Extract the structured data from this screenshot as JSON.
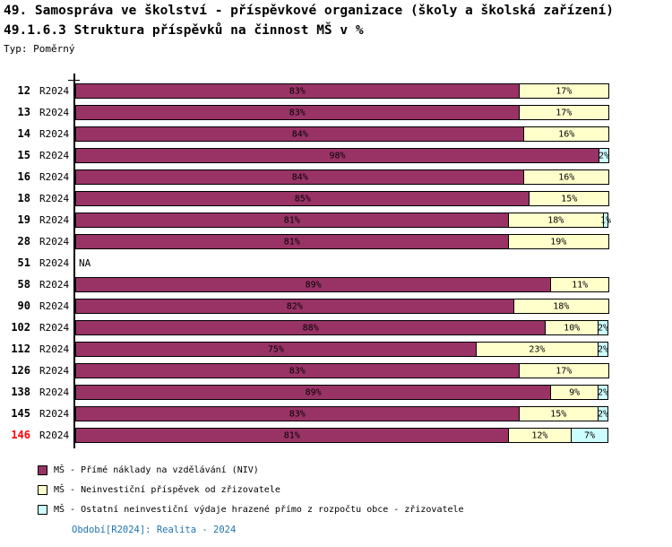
{
  "header": {
    "title_line1": "49. Samospráva ve školství - příspěvkové organizace (školy a školská zařízení)",
    "title_line2": "49.1.6.3 Struktura příspěvků na činnost MŠ v %",
    "type_label": "Typ: Poměrný"
  },
  "chart_data": {
    "type": "bar",
    "orientation": "horizontal",
    "stacked": true,
    "unit": "%",
    "xlim": [
      0,
      100
    ],
    "grid": false,
    "legend_position": "bottom",
    "na_label": "NA",
    "highlight_color": "#ff0000",
    "series": [
      {
        "name": "MŠ - Přímé náklady na vzdělávání (NIV)",
        "color": "#993366"
      },
      {
        "name": "MŠ - Neinvestiční příspěvek od zřizovatele",
        "color": "#FFFFCC"
      },
      {
        "name": "MŠ - Ostatní neinvestiční výdaje hrazené přímo z rozpočtu obce - zřizovatele",
        "color": "#CCFFFF"
      }
    ],
    "rows": [
      {
        "id": "12",
        "period": "R2024",
        "values": [
          83,
          17,
          0
        ]
      },
      {
        "id": "13",
        "period": "R2024",
        "values": [
          83,
          17,
          0
        ]
      },
      {
        "id": "14",
        "period": "R2024",
        "values": [
          84,
          16,
          0
        ]
      },
      {
        "id": "15",
        "period": "R2024",
        "values": [
          98,
          0,
          2
        ]
      },
      {
        "id": "16",
        "period": "R2024",
        "values": [
          84,
          16,
          0
        ]
      },
      {
        "id": "18",
        "period": "R2024",
        "values": [
          85,
          15,
          0
        ]
      },
      {
        "id": "19",
        "period": "R2024",
        "values": [
          81,
          18,
          1
        ]
      },
      {
        "id": "28",
        "period": "R2024",
        "values": [
          81,
          19,
          0
        ]
      },
      {
        "id": "51",
        "period": "R2024",
        "values": null,
        "na": true
      },
      {
        "id": "58",
        "period": "R2024",
        "values": [
          89,
          11,
          0
        ]
      },
      {
        "id": "90",
        "period": "R2024",
        "values": [
          82,
          18,
          0
        ]
      },
      {
        "id": "102",
        "period": "R2024",
        "values": [
          88,
          10,
          2
        ]
      },
      {
        "id": "112",
        "period": "R2024",
        "values": [
          75,
          23,
          2
        ]
      },
      {
        "id": "126",
        "period": "R2024",
        "values": [
          83,
          17,
          0
        ]
      },
      {
        "id": "138",
        "period": "R2024",
        "values": [
          89,
          9,
          2
        ]
      },
      {
        "id": "145",
        "period": "R2024",
        "values": [
          83,
          15,
          2
        ]
      },
      {
        "id": "146",
        "period": "R2024",
        "values": [
          81,
          12,
          7
        ],
        "highlight": true
      }
    ]
  },
  "footer": {
    "text": "Období[R2024]: Realita - 2024",
    "color": "#1F74B4"
  }
}
